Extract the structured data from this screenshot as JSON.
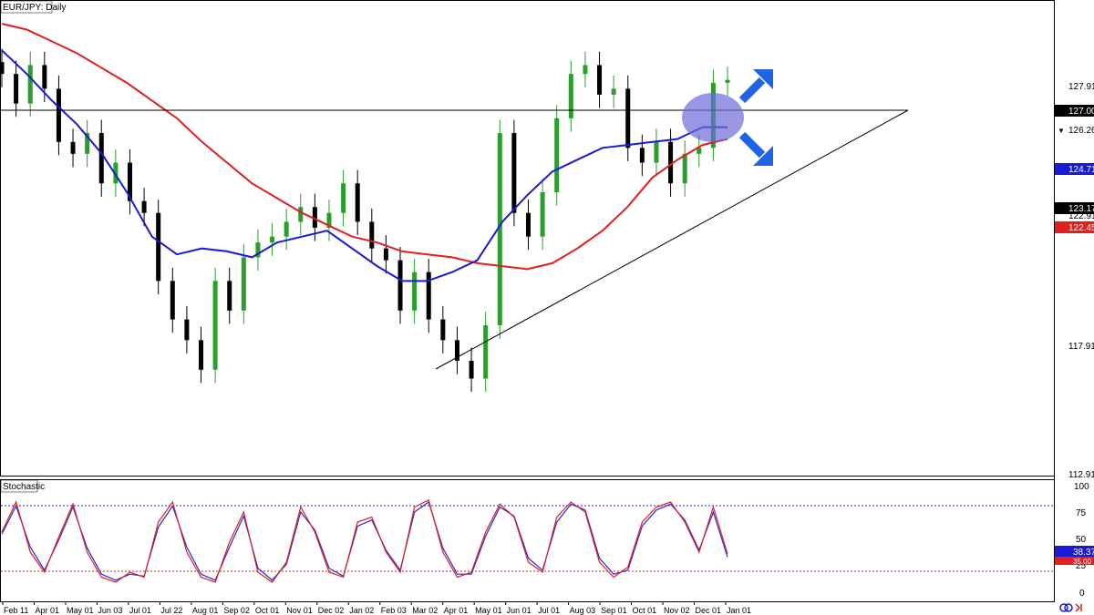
{
  "symbol_label": "EUR/JPY: Daily",
  "indicator_label": "Stochastic",
  "colors": {
    "up": "#2a9d2a",
    "down": "#000000",
    "ma_short": "#1a1ad6",
    "ma_long": "#e01f1f",
    "stoch_k": "#e01f1f",
    "stoch_d": "#2a2acc",
    "arrow": "#1f63e6",
    "circle": "#6b6bd9",
    "current_price_bg": "#000000"
  },
  "x_axis_labels": [
    "Feb 11",
    "Apr 01",
    "May 01",
    "Jun 03",
    "Jul 01",
    "Jul 22",
    "Aug 01",
    "Sep 02",
    "Oct 01",
    "Nov 01",
    "Dec 02",
    "Jan 02",
    "Feb 03",
    "Mar 02",
    "Apr 01",
    "May 01",
    "Jun 01",
    "Jul 01",
    "Aug 03",
    "Sep 01",
    "Oct 01",
    "Nov 02",
    "Dec 01",
    "Jan 01"
  ],
  "price_axis": {
    "ticks": [
      "127.919",
      "122.919",
      "117.919",
      "112.919"
    ],
    "badges": {
      "resistance": "127.000",
      "current": "126.260",
      "ma_short": "124.714",
      "level2": "123.172",
      "ma_long": "122.455"
    }
  },
  "stoch_axis": {
    "ticks": [
      "100",
      "75",
      "50",
      "25",
      "0"
    ],
    "badges": {
      "k": "38.37",
      "d": "35.00"
    }
  },
  "chart_data": {
    "type": "line",
    "title": "EUR/JPY: Daily",
    "ylim": [
      112.919,
      129.0
    ],
    "series": [
      {
        "name": "",
        "values": [
          128.2,
          128.0,
          127.6,
          127.2,
          126.7,
          126.2,
          125.6,
          125.0,
          124.2,
          123.5,
          122.8,
          122.3,
          121.8,
          121.4,
          121.0,
          120.8,
          120.5,
          120.4,
          120.3,
          120.1,
          120.0,
          119.9,
          120.1,
          120.6,
          121.2,
          122.0,
          123.0,
          123.6,
          124.1,
          124.3
        ]
      },
      {
        "name": "",
        "values": [
          127.3,
          126.5,
          125.6,
          124.8,
          123.8,
          122.5,
          121.0,
          120.4,
          120.6,
          120.5,
          120.3,
          120.8,
          121.0,
          121.2,
          120.6,
          120.0,
          119.5,
          119.5,
          119.8,
          120.2,
          121.5,
          122.4,
          123.2,
          123.6,
          124.0,
          124.1,
          124.2,
          124.3,
          124.7,
          124.7
        ]
      }
    ],
    "candles_close": [
      126.5,
      125.5,
      126.8,
      126.0,
      124.2,
      123.8,
      124.5,
      122.8,
      123.5,
      122.2,
      121.8,
      119.5,
      118.2,
      117.5,
      116.5,
      119.5,
      118.5,
      120.3,
      120.8,
      121.0,
      121.5,
      122.0,
      121.3,
      121.8,
      122.8,
      121.5,
      120.6,
      120.2,
      118.5,
      119.8,
      118.2,
      117.5,
      116.8,
      116.2,
      118.0,
      124.5,
      121.8,
      121.0,
      122.5,
      125.0,
      126.5,
      126.8,
      125.8,
      126.0,
      124.0,
      123.5,
      124.2,
      122.8,
      123.8,
      124.0,
      126.2,
      126.3
    ],
    "support_line": [
      [
        117.5,
        0.0
      ],
      [
        127.0,
        1.0
      ]
    ],
    "resistance": 127.0,
    "stochastic": {
      "ylim": [
        0,
        100
      ],
      "overbought": 80,
      "oversold": 20,
      "k": [
        60,
        90,
        40,
        20,
        55,
        88,
        40,
        15,
        10,
        20,
        15,
        70,
        90,
        40,
        15,
        10,
        50,
        80,
        20,
        10,
        30,
        85,
        60,
        20,
        15,
        70,
        75,
        40,
        20,
        85,
        92,
        40,
        15,
        20,
        60,
        88,
        75,
        30,
        20,
        75,
        90,
        80,
        30,
        15,
        25,
        70,
        85,
        90,
        70,
        40,
        85,
        38.37
      ],
      "d": [
        58,
        86,
        45,
        22,
        52,
        85,
        44,
        18,
        12,
        18,
        16,
        65,
        86,
        45,
        18,
        12,
        45,
        76,
        24,
        12,
        28,
        80,
        62,
        24,
        16,
        66,
        72,
        42,
        22,
        80,
        90,
        44,
        18,
        18,
        56,
        85,
        76,
        34,
        22,
        70,
        88,
        82,
        34,
        18,
        22,
        66,
        82,
        88,
        72,
        42,
        80,
        35.0
      ]
    }
  }
}
